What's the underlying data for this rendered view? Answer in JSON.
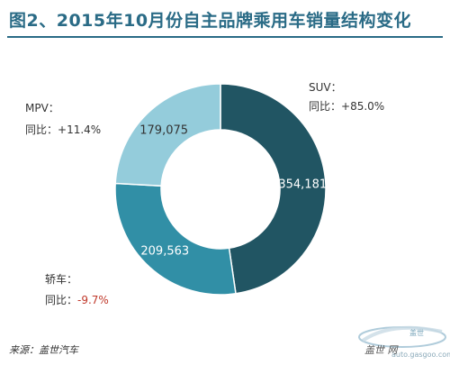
{
  "chart_data": {
    "type": "pie",
    "title": "图2、2015年10月份自主品牌乘用车销量结构变化",
    "donut": true,
    "categories": [
      "SUV",
      "轿车",
      "MPV"
    ],
    "values": [
      354181,
      209563,
      179075
    ],
    "value_labels": [
      "354,181",
      "209,563",
      "179,075"
    ],
    "series_labels": [
      {
        "name": "SUV：",
        "change_label": "同比：",
        "change_value": "+85.0%"
      },
      {
        "name": "轿车：",
        "change_label": "同比：",
        "change_value": "-9.7%"
      },
      {
        "name": "MPV：",
        "change_label": "同比：",
        "change_value": "+11.4%"
      }
    ],
    "colors": [
      "#215563",
      "#318fa6",
      "#94ccdb"
    ],
    "negative_color": "#c0392b"
  },
  "footer": {
    "source": "来源：盖世汽车",
    "watermark_cn": "盖世  网",
    "watermark_url": "auto.gasgoo.com"
  }
}
